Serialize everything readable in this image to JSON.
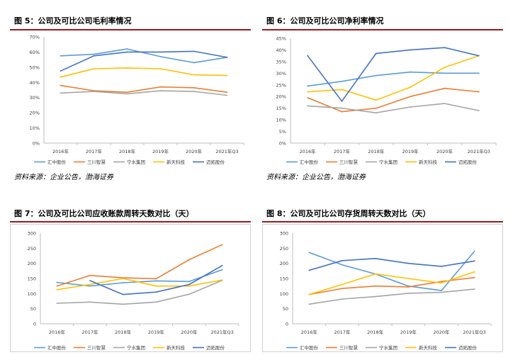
{
  "series_colors": [
    "#5B9BD5",
    "#ED7D31",
    "#A5A5A5",
    "#FFC000",
    "#4472C4"
  ],
  "panels": [
    {
      "title": "图 5：公司及可比公司毛利率情况",
      "source": "资料来源：企业公告，渤海证券"
    },
    {
      "title": "图 6：公司及可比公司净利率情况",
      "source": "资料来源：企业公告，渤海证券"
    },
    {
      "title": "图 7：公司及可比公司应收账款周转天数对比（天）",
      "source": ""
    },
    {
      "title": "图 8：公司及可比公司存货周转天数对比（天）",
      "source": ""
    }
  ],
  "chart_data": [
    {
      "type": "line",
      "title": "",
      "categories": [
        "2016年",
        "2017年",
        "2018年",
        "2019年",
        "2020年",
        "2021年Q3"
      ],
      "ylim": [
        0,
        70
      ],
      "yticks": [
        "0%",
        "10%",
        "20%",
        "30%",
        "40%",
        "50%",
        "60%",
        "70%"
      ],
      "ytick_step": 10,
      "grid": false,
      "legend": "bottom",
      "series": [
        {
          "name": "汇中股份",
          "values": [
            57.5,
            58.5,
            62,
            57,
            53,
            56.5
          ]
        },
        {
          "name": "三川智慧",
          "values": [
            38,
            34.5,
            33.5,
            37,
            36.5,
            33.5
          ]
        },
        {
          "name": "宁水集团",
          "values": [
            33,
            34,
            32.5,
            34.5,
            34,
            31.5
          ]
        },
        {
          "name": "新天科技",
          "values": [
            43.5,
            49,
            49.5,
            49,
            45,
            44.5
          ]
        },
        {
          "name": "迈拓股份",
          "values": [
            47.5,
            57.5,
            60,
            60,
            60.5,
            56.5
          ]
        }
      ]
    },
    {
      "type": "line",
      "title": "",
      "categories": [
        "2016年",
        "2017年",
        "2018年",
        "2019年",
        "2020年",
        "2021年Q3"
      ],
      "ylim": [
        0,
        45
      ],
      "yticks": [
        "0%",
        "5%",
        "10%",
        "15%",
        "20%",
        "25%",
        "30%",
        "35%",
        "40%",
        "45%"
      ],
      "ytick_step": 5,
      "grid": false,
      "legend": "bottom",
      "series": [
        {
          "name": "汇中股份",
          "values": [
            24.5,
            26.5,
            29,
            30.5,
            30,
            30
          ]
        },
        {
          "name": "三川智慧",
          "values": [
            19.5,
            13.5,
            15,
            20,
            23.5,
            22
          ]
        },
        {
          "name": "宁水集团",
          "values": [
            16,
            15,
            13,
            15.5,
            17,
            14
          ]
        },
        {
          "name": "新天科技",
          "values": [
            22,
            23,
            18.5,
            24,
            32.5,
            37.5
          ]
        },
        {
          "name": "迈拓股份",
          "values": [
            37.5,
            18,
            38.5,
            40,
            41,
            37.5
          ]
        }
      ]
    },
    {
      "type": "line",
      "title": "",
      "categories": [
        "2016年",
        "2017年",
        "2018年",
        "2019年",
        "2020年",
        "2021年Q3"
      ],
      "ylim": [
        0,
        300
      ],
      "yticks": [
        "0",
        "50",
        "100",
        "150",
        "200",
        "250",
        "300"
      ],
      "ytick_step": 50,
      "grid": false,
      "legend": "bottom",
      "series": [
        {
          "name": "汇中股份",
          "values": [
            137,
            125,
            136,
            142,
            140,
            179
          ]
        },
        {
          "name": "三川智慧",
          "values": [
            125,
            160,
            152,
            149,
            212,
            262
          ]
        },
        {
          "name": "宁水集团",
          "values": [
            68,
            72,
            65,
            72,
            98,
            144
          ]
        },
        {
          "name": "新天科技",
          "values": [
            113,
            130,
            150,
            125,
            125,
            145
          ]
        },
        {
          "name": "迈拓股份",
          "values": [
            null,
            143,
            97,
            105,
            130,
            193
          ]
        }
      ]
    },
    {
      "type": "line",
      "title": "",
      "categories": [
        "2016年",
        "2017年",
        "2018年",
        "2019年",
        "2020年",
        "2021年Q3"
      ],
      "ylim": [
        0,
        300
      ],
      "yticks": [
        "0",
        "50",
        "100",
        "150",
        "200",
        "250",
        "300"
      ],
      "ytick_step": 50,
      "grid": false,
      "legend": "bottom",
      "series": [
        {
          "name": "汇中股份",
          "values": [
            236,
            195,
            165,
            125,
            110,
            240
          ]
        },
        {
          "name": "三川智慧",
          "values": [
            97,
            117,
            125,
            122,
            140,
            153
          ]
        },
        {
          "name": "宁水集团",
          "values": [
            65,
            82,
            90,
            101,
            104,
            115
          ]
        },
        {
          "name": "新天科技",
          "values": [
            97,
            130,
            165,
            150,
            135,
            172
          ]
        },
        {
          "name": "迈拓股份",
          "values": [
            177,
            209,
            216,
            200,
            190,
            208
          ]
        }
      ]
    }
  ]
}
